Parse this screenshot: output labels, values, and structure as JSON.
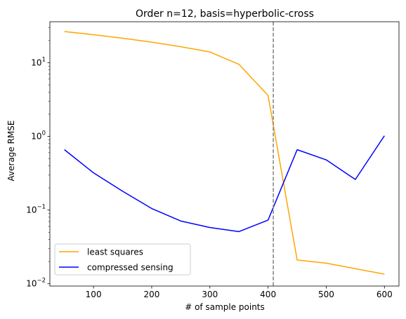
{
  "chart_data": {
    "type": "line",
    "title": "Order n=12, basis=hyperbolic-cross",
    "xlabel": "# of sample points",
    "ylabel": "Average RMSE",
    "yscale": "log",
    "xlim": [
      25,
      625
    ],
    "ylim": [
      0.0093,
      36
    ],
    "x_ticks": [
      100,
      200,
      300,
      400,
      500,
      600
    ],
    "x_tick_labels": [
      "100",
      "200",
      "300",
      "400",
      "500",
      "600"
    ],
    "y_ticks": [
      0.01,
      0.1,
      1,
      10
    ],
    "y_tick_labels": [
      {
        "base": "10",
        "exp": "−2"
      },
      {
        "base": "10",
        "exp": "−1"
      },
      {
        "base": "10",
        "exp": "0"
      },
      {
        "base": "10",
        "exp": "1"
      }
    ],
    "vline": {
      "x": 409,
      "color": "#808080",
      "style": "dashed"
    },
    "legend_position": "lower-left",
    "x": [
      50,
      100,
      150,
      200,
      250,
      300,
      350,
      400,
      450,
      500,
      550,
      600
    ],
    "series": [
      {
        "name": "least squares",
        "color": "#FFA500",
        "values": [
          26.5,
          24.0,
          21.5,
          19.0,
          16.5,
          14.0,
          9.5,
          3.6,
          0.021,
          0.019,
          0.016,
          0.0135
        ]
      },
      {
        "name": "compressed sensing",
        "color": "#0000FF",
        "values": [
          0.66,
          0.32,
          0.18,
          0.105,
          0.071,
          0.058,
          0.051,
          0.073,
          0.66,
          0.48,
          0.26,
          1.02
        ]
      }
    ]
  }
}
